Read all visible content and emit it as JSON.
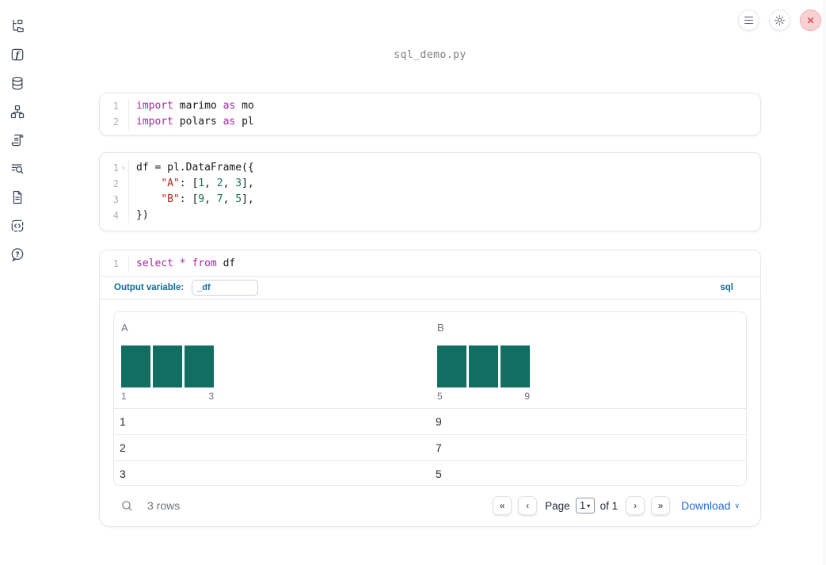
{
  "window": {
    "title": "sql_demo.py"
  },
  "topbar": {
    "close_glyph": "✕",
    "buttons": [
      {
        "name": "menu",
        "icon": "hamburger-icon"
      },
      {
        "name": "settings",
        "icon": "gear-icon"
      },
      {
        "name": "close",
        "icon": "close-icon"
      }
    ]
  },
  "sidebar": {
    "icons": [
      "file-tree-icon",
      "function-icon",
      "database-icon",
      "dependency-graph-icon",
      "scroll-icon",
      "list-search-icon",
      "document-icon",
      "code-snippet-icon",
      "help-icon"
    ]
  },
  "colors": {
    "histogram_bar": "#116e61",
    "accent_blue": "#15699c",
    "link_blue": "#2269d3",
    "close_red": "#d45656"
  },
  "cells": [
    {
      "name": "imports",
      "lines": [
        {
          "num": "1",
          "tokens": [
            [
              "kw",
              "import"
            ],
            [
              "pl",
              " marimo "
            ],
            [
              "kw",
              "as"
            ],
            [
              "pl",
              " mo"
            ]
          ]
        },
        {
          "num": "2",
          "tokens": [
            [
              "kw",
              "import"
            ],
            [
              "pl",
              " polars "
            ],
            [
              "kw",
              "as"
            ],
            [
              "pl",
              " pl"
            ]
          ]
        }
      ]
    },
    {
      "name": "dataframe",
      "lines": [
        {
          "num": "1",
          "fold": true,
          "tokens": [
            [
              "pl",
              "df = pl.DataFrame({"
            ]
          ]
        },
        {
          "num": "2",
          "tokens": [
            [
              "pl",
              "    "
            ],
            [
              "str",
              "\"A\""
            ],
            [
              "pl",
              ": ["
            ],
            [
              "num",
              "1"
            ],
            [
              "pl",
              ", "
            ],
            [
              "num",
              "2"
            ],
            [
              "pl",
              ", "
            ],
            [
              "num",
              "3"
            ],
            [
              "pl",
              "],"
            ]
          ]
        },
        {
          "num": "3",
          "tokens": [
            [
              "pl",
              "    "
            ],
            [
              "str",
              "\"B\""
            ],
            [
              "pl",
              ": ["
            ],
            [
              "num",
              "9"
            ],
            [
              "pl",
              ", "
            ],
            [
              "num",
              "7"
            ],
            [
              "pl",
              ", "
            ],
            [
              "num",
              "5"
            ],
            [
              "pl",
              "],"
            ]
          ]
        },
        {
          "num": "4",
          "tokens": [
            [
              "pl",
              "})"
            ]
          ]
        }
      ]
    },
    {
      "name": "sql",
      "lines": [
        {
          "num": "1",
          "tokens": [
            [
              "kw",
              "select"
            ],
            [
              "pl",
              " "
            ],
            [
              "kw",
              "*"
            ],
            [
              "pl",
              " "
            ],
            [
              "kw",
              "from"
            ],
            [
              "pl",
              " df"
            ]
          ]
        }
      ]
    }
  ],
  "sql_cell": {
    "output_variable_label": "Output variable:",
    "output_variable_value": "_df",
    "language_label": "sql"
  },
  "table": {
    "columns": [
      {
        "label": "A",
        "hist": {
          "values": [
            1,
            1,
            1
          ],
          "min_label": "1",
          "max_label": "3"
        }
      },
      {
        "label": "B",
        "hist": {
          "values": [
            1,
            1,
            1
          ],
          "min_label": "5",
          "max_label": "9"
        }
      }
    ],
    "rows": [
      [
        "1",
        "9"
      ],
      [
        "2",
        "7"
      ],
      [
        "3",
        "5"
      ]
    ],
    "footer": {
      "row_count": "3 rows",
      "page_label": "Page",
      "page_value": "1",
      "of_label": "of 1",
      "download_label": "Download",
      "icons": {
        "first": "«",
        "prev": "‹",
        "next": "›",
        "last": "»",
        "select_arrow": "▾",
        "dropdown": "∨"
      }
    }
  }
}
